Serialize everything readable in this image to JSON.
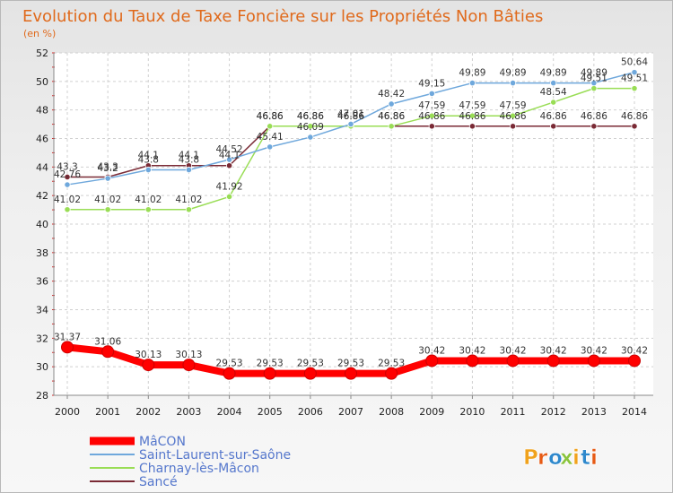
{
  "title": "Evolution du Taux de Taxe Foncière sur les Propriétés Non Bâties",
  "subtitle": "(en %)",
  "logo_text": "Proxiti",
  "colors": {
    "title": "#e06a1c",
    "logo_letters": [
      "#f0a21c",
      "#e65a14",
      "#2e88cc",
      "#8ac43c",
      "#f0a21c",
      "#2e88cc",
      "#e65a14"
    ]
  },
  "chart_data": {
    "type": "line",
    "title": "Evolution du Taux de Taxe Foncière sur les Propriétés Non Bâties",
    "ylabel": "(en %)",
    "xlabel": "",
    "ylim": [
      28,
      52
    ],
    "yticks": [
      28,
      30,
      32,
      34,
      36,
      38,
      40,
      42,
      44,
      46,
      48,
      50,
      52
    ],
    "x": [
      2000,
      2001,
      2002,
      2003,
      2004,
      2005,
      2006,
      2007,
      2008,
      2009,
      2010,
      2011,
      2012,
      2013,
      2014
    ],
    "grid": true,
    "legend": "bottom-left",
    "series": [
      {
        "name": "MâCON",
        "color": "#ff0000",
        "values": [
          31.37,
          31.06,
          30.13,
          30.13,
          29.53,
          29.53,
          29.53,
          29.53,
          29.53,
          30.42,
          30.42,
          30.42,
          30.42,
          30.42,
          30.42
        ]
      },
      {
        "name": "Saint-Laurent-sur-Saône",
        "color": "#6fa8dc",
        "values": [
          42.76,
          43.2,
          43.8,
          43.8,
          44.52,
          45.41,
          46.09,
          47.01,
          48.42,
          49.15,
          49.89,
          49.89,
          49.89,
          49.89,
          50.64
        ]
      },
      {
        "name": "Charnay-lès-Mâcon",
        "color": "#99dd55",
        "values": [
          41.02,
          41.02,
          41.02,
          41.02,
          41.92,
          46.86,
          46.86,
          46.86,
          46.86,
          47.59,
          47.59,
          47.59,
          48.54,
          49.51,
          49.51
        ]
      },
      {
        "name": "Sancé",
        "color": "#7a2a35",
        "values": [
          43.3,
          43.3,
          44.1,
          44.1,
          44.1,
          46.86,
          46.86,
          46.86,
          46.86,
          46.86,
          46.86,
          46.86,
          46.86,
          46.86,
          46.86
        ]
      }
    ],
    "data_labels": [
      [
        "31.37",
        "31.06",
        "30.13",
        "30.13",
        "29.53",
        "29.53",
        "29.53",
        "29.53",
        "29.53",
        "30.42",
        "30.42",
        "30.42",
        "30.42",
        "30.42",
        "30.42"
      ],
      [
        "42.76",
        "43.2",
        "43.8",
        "43.8",
        "44.52",
        "45.41",
        "46.09",
        "47.01",
        "48.42",
        "49.15",
        "49.89",
        "49.89",
        "49.89",
        "49.89",
        "50.64"
      ],
      [
        "41.02",
        "41.02",
        "41.02",
        "41.02",
        "41.92",
        "46.86",
        "46.86",
        "46.86",
        "46.86",
        "47.59",
        "47.59",
        "47.59",
        "48.54",
        "49.51",
        "49.51"
      ],
      [
        "43.3",
        "43.3",
        "44.1",
        "44.1",
        "44.1",
        "46.86",
        "46.86",
        "46.86",
        "46.86",
        "46.86",
        "46.86",
        "46.86",
        "46.86",
        "46.86",
        "46.86"
      ]
    ]
  }
}
